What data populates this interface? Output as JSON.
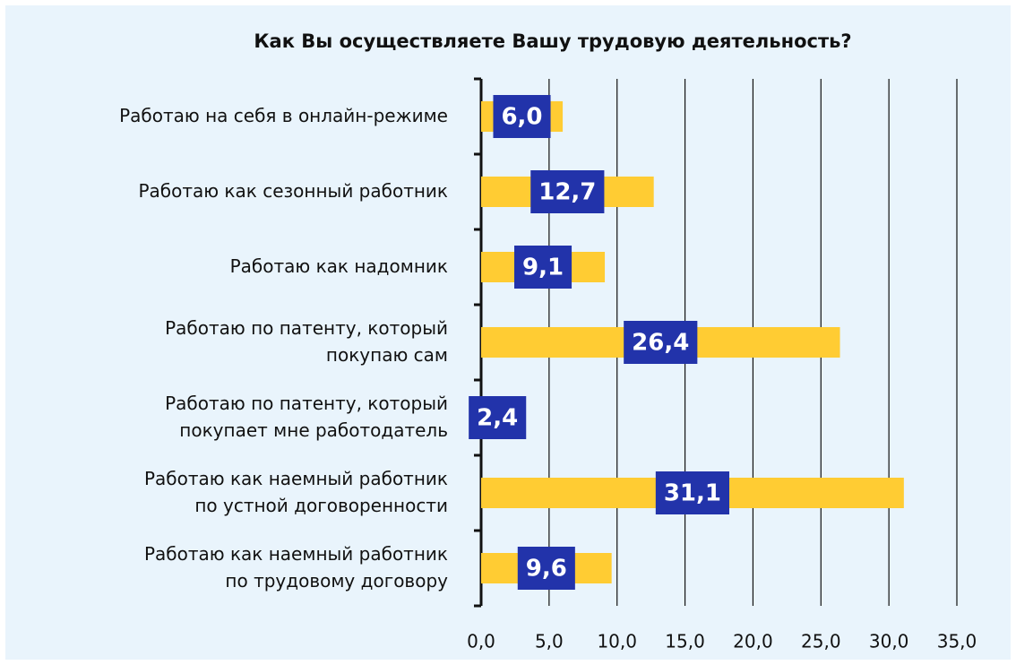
{
  "chart_data": {
    "type": "bar",
    "orientation": "horizontal",
    "title": "Как Вы осуществляете Вашу трудовую деятельность?",
    "categories": [
      "Работаю на себя в онлайн-режиме",
      "Работаю как сезонный работник",
      "Работаю как надомник",
      "Работаю по патенту, который\nпокупаю сам",
      "Работаю по патенту, который\nпокупает мне работодатель",
      "Работаю как наемный работник\nпо устной договоренности",
      "Работаю как наемный работник\nпо трудовому договору"
    ],
    "values": [
      6.0,
      12.7,
      9.1,
      26.4,
      2.4,
      31.1,
      9.6
    ],
    "value_labels": [
      "6,0",
      "12,7",
      "9,1",
      "26,4",
      "2,4",
      "31,1",
      "9,6"
    ],
    "color": "#ffcc33",
    "label_color": "#2233aa",
    "xlim": [
      0,
      35
    ],
    "xticks": [
      {
        "value": 0,
        "label": "0,0"
      },
      {
        "value": 5,
        "label": "5,0"
      },
      {
        "value": 10,
        "label": "10,0"
      },
      {
        "value": 15,
        "label": "15,0"
      },
      {
        "value": 20,
        "label": "20,0"
      },
      {
        "value": 25,
        "label": "25,0"
      },
      {
        "value": 30,
        "label": "30,0"
      },
      {
        "value": 35,
        "label": "35,0"
      }
    ],
    "grid": true
  }
}
